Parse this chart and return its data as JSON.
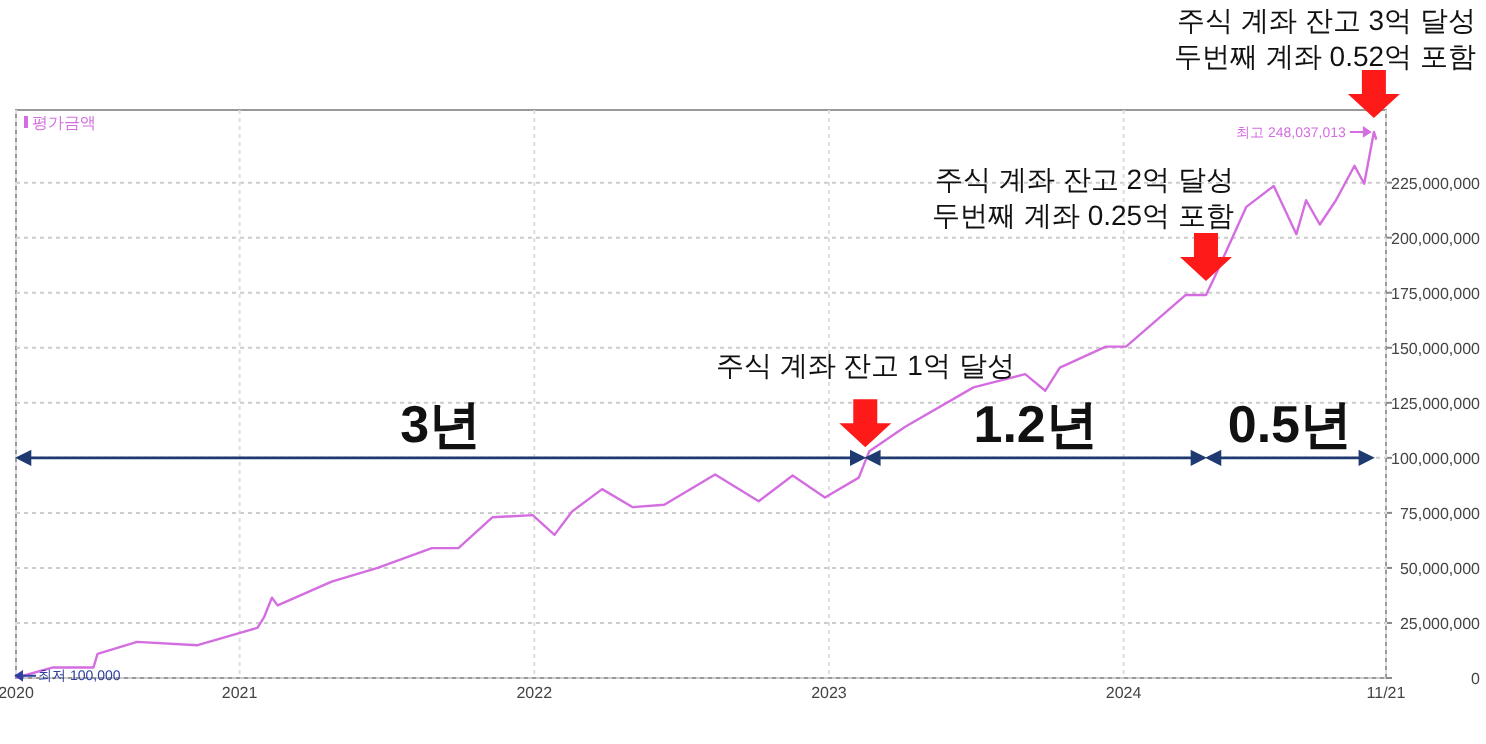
{
  "chart_data": {
    "type": "line",
    "x": [
      "2020-03-30",
      "2020-05-15",
      "2020-07-04",
      "2020-07-09",
      "2020-08-27",
      "2020-11-10",
      "2021-01-23",
      "2021-01-31",
      "2021-02-10",
      "2021-02-17",
      "2021-04-25",
      "2021-06-21",
      "2021-08-27",
      "2021-09-29",
      "2021-11-10",
      "2021-12-30",
      "2022-01-26",
      "2022-02-17",
      "2022-03-26",
      "2022-05-03",
      "2022-06-11",
      "2022-08-13",
      "2022-10-06",
      "2022-11-17",
      "2022-12-27",
      "2023-02-07",
      "2023-02-15",
      "2023-02-20",
      "2023-04-05",
      "2023-06-29",
      "2023-09-01",
      "2023-09-26",
      "2023-10-14",
      "2023-12-10",
      "2024-01-04",
      "2024-03-18",
      "2024-04-12",
      "2024-04-22",
      "2024-06-01",
      "2024-07-05",
      "2024-08-02",
      "2024-08-14",
      "2024-08-31",
      "2024-09-20",
      "2024-10-13",
      "2024-10-25",
      "2024-11-06",
      "2024-11-09"
    ],
    "series": [
      {
        "name": "평가금액",
        "color": "#d46ee0",
        "values": [
          100000,
          4800000,
          4800000,
          11000000,
          16400000,
          14900000,
          22800000,
          27400000,
          36500000,
          33000000,
          43800000,
          50000000,
          59000000,
          59000000,
          73000000,
          74000000,
          65000000,
          75700000,
          85800000,
          77600000,
          78700000,
          92400000,
          80300000,
          92000000,
          82000000,
          91000000,
          98500000,
          103000000,
          114000000,
          132000000,
          138000000,
          130500000,
          141000000,
          150500000,
          150500000,
          174000000,
          174000000,
          181600000,
          214000000,
          223500000,
          201600000,
          217000000,
          206000000,
          217000000,
          232700000,
          224500000,
          248037013,
          244500000
        ]
      }
    ],
    "xlim": [
      "2020-03-30",
      "2024-11-21"
    ],
    "xticks": [
      {
        "value": "2020-03-30",
        "label": "2020"
      },
      {
        "value": "2021-01-01",
        "label": "2021"
      },
      {
        "value": "2022-01-01",
        "label": "2022"
      },
      {
        "value": "2023-01-01",
        "label": "2023"
      },
      {
        "value": "2024-01-01",
        "label": "2024"
      },
      {
        "value": "2024-11-21",
        "label": "11/21"
      }
    ],
    "ylim": [
      0,
      258000000
    ],
    "yticks": [
      0,
      {
        "value": 25000000,
        "label": "25,000,000"
      },
      {
        "value": 50000000,
        "label": "50,000,000"
      },
      {
        "value": 75000000,
        "label": "75,000,000"
      },
      {
        "value": 100000000,
        "label": "100,000,000"
      },
      {
        "value": 125000000,
        "label": "125,000,000"
      },
      {
        "value": 150000000,
        "label": "150,000,000"
      },
      {
        "value": 175000000,
        "label": "175,000,000"
      },
      {
        "value": 200000000,
        "label": "200,000,000"
      },
      {
        "value": 225000000,
        "label": "225,000,000"
      }
    ],
    "grid": true,
    "legend": "top left",
    "annotations": [
      {
        "text": "최저 100,000",
        "x": "2020-03-30",
        "y": 100000
      },
      {
        "text": "최고 248,037,013",
        "x": "2024-11-06",
        "y": 248037013
      },
      {
        "text": "주식 계좌 잔고 1억 달성",
        "x": "2023-02-15",
        "y": 98500000
      },
      {
        "text": "주식 계좌 잔고 2억 달성\n두번째 계좌 0.25억 포함",
        "x": "2024-04-12",
        "y": 174000000
      },
      {
        "text": "주식 계좌 잔고 3억 달성\n두번째 계좌 0.52억 포함",
        "x": "2024-11-06",
        "y": 248037013
      },
      "3년",
      "1.2년",
      "0.5년"
    ]
  }
}
